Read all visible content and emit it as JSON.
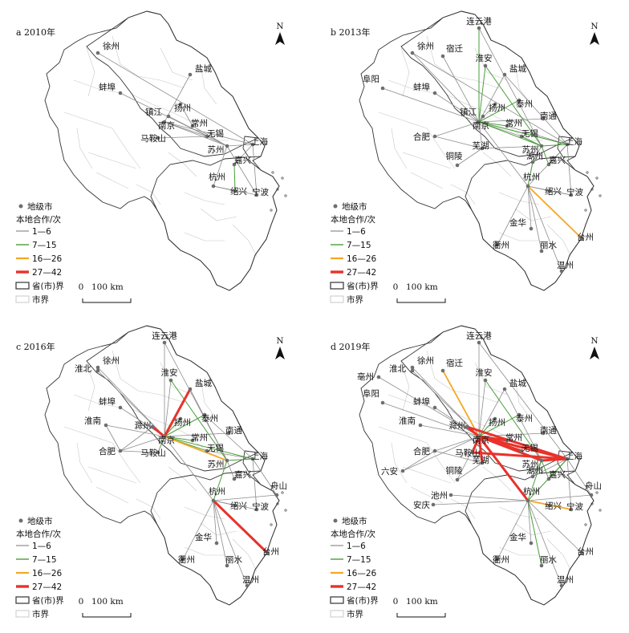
{
  "colors": {
    "c1": "#8c8c8c",
    "c2": "#4a9e3a",
    "c3": "#f5a623",
    "c4": "#e8322b",
    "prov": "#333333",
    "cityb": "#c8c8c8",
    "dot": "#6e6e6e"
  },
  "legend": {
    "dot": "地级市",
    "title": "本地合作/次",
    "classes": [
      "1—6",
      "7—15",
      "16—26",
      "27—42"
    ],
    "prov_boundary": "省(市)界",
    "city_boundary": "市界"
  },
  "north": "N",
  "scale": {
    "zero": "0",
    "label": "100 km"
  },
  "panels": [
    {
      "title": "a 2010年",
      "cities": [
        "徐州",
        "盐城",
        "蚌埠",
        "扬州",
        "镇江",
        "南京",
        "常州",
        "无锡",
        "马鞍山",
        "苏州",
        "上海",
        "嘉兴",
        "杭州",
        "绍兴",
        "宁波"
      ],
      "links": [
        {
          "from": "徐州",
          "to": "上海",
          "w": 1
        },
        {
          "from": "蚌埠",
          "to": "苏州",
          "w": 1
        },
        {
          "from": "盐城",
          "to": "南京",
          "w": 1
        },
        {
          "from": "扬州",
          "to": "常州",
          "w": 1
        },
        {
          "from": "镇江",
          "to": "苏州",
          "w": 1
        },
        {
          "from": "南京",
          "to": "苏州",
          "w": 1
        },
        {
          "from": "南京",
          "to": "上海",
          "w": 1
        },
        {
          "from": "南京",
          "to": "无锡",
          "w": 1
        },
        {
          "from": "常州",
          "to": "苏州",
          "w": 1
        },
        {
          "from": "马鞍山",
          "to": "无锡",
          "w": 1
        },
        {
          "from": "苏州",
          "to": "上海",
          "w": 1
        },
        {
          "from": "苏州",
          "to": "杭州",
          "w": 1
        },
        {
          "from": "苏州",
          "to": "宁波",
          "w": 1
        },
        {
          "from": "上海",
          "to": "宁波",
          "w": 1
        },
        {
          "from": "杭州",
          "to": "绍兴",
          "w": 1
        },
        {
          "from": "杭州",
          "to": "宁波",
          "w": 1
        },
        {
          "from": "上海",
          "to": "嘉兴",
          "w": 1
        },
        {
          "from": "嘉兴",
          "to": "绍兴",
          "w": 2
        }
      ]
    },
    {
      "title": "b 2013年",
      "cities": [
        "连云港",
        "徐州",
        "宿迁",
        "淮安",
        "盐城",
        "阜阳",
        "蚌埠",
        "扬州",
        "泰州",
        "镇江",
        "南京",
        "常州",
        "南通",
        "合肥",
        "无锡",
        "苏州",
        "上海",
        "芜湖",
        "湖州",
        "嘉兴",
        "铜陵",
        "杭州",
        "绍兴",
        "宁波",
        "金华",
        "衢州",
        "台州",
        "丽水",
        "温州"
      ],
      "links": [
        {
          "from": "连云港",
          "to": "南京",
          "w": 2
        },
        {
          "from": "连云港",
          "to": "苏州",
          "w": 1
        },
        {
          "from": "徐州",
          "to": "南京",
          "w": 1
        },
        {
          "from": "徐州",
          "to": "上海",
          "w": 1
        },
        {
          "from": "宿迁",
          "to": "南京",
          "w": 1
        },
        {
          "from": "淮安",
          "to": "南京",
          "w": 2
        },
        {
          "from": "淮安",
          "to": "苏州",
          "w": 2
        },
        {
          "from": "盐城",
          "to": "南京",
          "w": 1
        },
        {
          "from": "盐城",
          "to": "上海",
          "w": 1
        },
        {
          "from": "阜阳",
          "to": "南京",
          "w": 1
        },
        {
          "from": "蚌埠",
          "to": "南京",
          "w": 1
        },
        {
          "from": "扬州",
          "to": "南京",
          "w": 1
        },
        {
          "from": "泰州",
          "to": "南京",
          "w": 2
        },
        {
          "from": "镇江",
          "to": "南京",
          "w": 1
        },
        {
          "from": "南京",
          "to": "常州",
          "w": 2
        },
        {
          "from": "南京",
          "to": "无锡",
          "w": 1
        },
        {
          "from": "南京",
          "to": "苏州",
          "w": 2
        },
        {
          "from": "南京",
          "to": "上海",
          "w": 2
        },
        {
          "from": "南京",
          "to": "南通",
          "w": 1
        },
        {
          "from": "南京",
          "to": "芜湖",
          "w": 1
        },
        {
          "from": "南京",
          "to": "杭州",
          "w": 1
        },
        {
          "from": "南京",
          "to": "合肥",
          "w": 1
        },
        {
          "from": "常州",
          "to": "上海",
          "w": 1
        },
        {
          "from": "无锡",
          "to": "苏州",
          "w": 2
        },
        {
          "from": "苏州",
          "to": "上海",
          "w": 2
        },
        {
          "from": "苏州",
          "to": "嘉兴",
          "w": 2
        },
        {
          "from": "苏州",
          "to": "湖州",
          "w": 1
        },
        {
          "from": "上海",
          "to": "杭州",
          "w": 1
        },
        {
          "from": "上海",
          "to": "宁波",
          "w": 1
        },
        {
          "from": "上海",
          "to": "嘉兴",
          "w": 1
        },
        {
          "from": "合肥",
          "to": "芜湖",
          "w": 1
        },
        {
          "from": "芜湖",
          "to": "铜陵",
          "w": 1
        },
        {
          "from": "芜湖",
          "to": "苏州",
          "w": 1
        },
        {
          "from": "湖州",
          "to": "杭州",
          "w": 1
        },
        {
          "from": "杭州",
          "to": "绍兴",
          "w": 1
        },
        {
          "from": "杭州",
          "to": "宁波",
          "w": 1
        },
        {
          "from": "杭州",
          "to": "金华",
          "w": 1
        },
        {
          "from": "杭州",
          "to": "衢州",
          "w": 1
        },
        {
          "from": "杭州",
          "to": "丽水",
          "w": 1
        },
        {
          "from": "杭州",
          "to": "温州",
          "w": 1
        },
        {
          "from": "杭州",
          "to": "台州",
          "w": 3
        },
        {
          "from": "杭州",
          "to": "湖州",
          "w": 2
        },
        {
          "from": "嘉兴",
          "to": "上海",
          "w": 1
        },
        {
          "from": "宁波",
          "to": "绍兴",
          "w": 1
        }
      ]
    },
    {
      "title": "c 2016年",
      "cities": [
        "连云港",
        "徐州",
        "淮北",
        "淮安",
        "盐城",
        "蚌埠",
        "淮南",
        "扬州",
        "泰州",
        "滁州",
        "南京",
        "常州",
        "南通",
        "合肥",
        "马鞍山",
        "无锡",
        "苏州",
        "上海",
        "嘉兴",
        "杭州",
        "绍兴",
        "舟山",
        "宁波",
        "金华",
        "衢州",
        "台州",
        "丽水",
        "温州"
      ],
      "links": [
        {
          "from": "连云港",
          "to": "南京",
          "w": 1
        },
        {
          "from": "连云港",
          "to": "苏州",
          "w": 1
        },
        {
          "from": "徐州",
          "to": "南京",
          "w": 1
        },
        {
          "from": "淮北",
          "to": "南京",
          "w": 1
        },
        {
          "from": "淮安",
          "to": "南京",
          "w": 1
        },
        {
          "from": "淮安",
          "to": "苏州",
          "w": 2
        },
        {
          "from": "盐城",
          "to": "南京",
          "w": 4
        },
        {
          "from": "盐城",
          "to": "苏州",
          "w": 1
        },
        {
          "from": "蚌埠",
          "to": "南京",
          "w": 1
        },
        {
          "from": "淮南",
          "to": "南京",
          "w": 1
        },
        {
          "from": "扬州",
          "to": "南京",
          "w": 2
        },
        {
          "from": "泰州",
          "to": "南京",
          "w": 2
        },
        {
          "from": "泰州",
          "to": "上海",
          "w": 1
        },
        {
          "from": "滁州",
          "to": "南京",
          "w": 4
        },
        {
          "from": "南京",
          "to": "苏州",
          "w": 3
        },
        {
          "from": "南京",
          "to": "上海",
          "w": 2
        },
        {
          "from": "南京",
          "to": "无锡",
          "w": 2
        },
        {
          "from": "南京",
          "to": "常州",
          "w": 2
        },
        {
          "from": "南京",
          "to": "南通",
          "w": 1
        },
        {
          "from": "南京",
          "to": "杭州",
          "w": 1
        },
        {
          "from": "南京",
          "to": "合肥",
          "w": 1
        },
        {
          "from": "南京",
          "to": "马鞍山",
          "w": 2
        },
        {
          "from": "苏州",
          "to": "上海",
          "w": 2
        },
        {
          "from": "无锡",
          "to": "上海",
          "w": 1
        },
        {
          "from": "苏州",
          "to": "杭州",
          "w": 2
        },
        {
          "from": "苏州",
          "to": "嘉兴",
          "w": 1
        },
        {
          "from": "上海",
          "to": "舟山",
          "w": 1
        },
        {
          "from": "上海",
          "to": "宁波",
          "w": 1
        },
        {
          "from": "杭州",
          "to": "台州",
          "w": 4
        },
        {
          "from": "杭州",
          "to": "绍兴",
          "w": 1
        },
        {
          "from": "杭州",
          "to": "宁波",
          "w": 1
        },
        {
          "from": "杭州",
          "to": "金华",
          "w": 1
        },
        {
          "from": "杭州",
          "to": "衢州",
          "w": 1
        },
        {
          "from": "杭州",
          "to": "丽水",
          "w": 1
        },
        {
          "from": "杭州",
          "to": "温州",
          "w": 1
        },
        {
          "from": "杭州",
          "to": "舟山",
          "w": 1
        },
        {
          "from": "合肥",
          "to": "淮南",
          "w": 1
        },
        {
          "from": "合肥",
          "to": "滁州",
          "w": 1
        },
        {
          "from": "合肥",
          "to": "马鞍山",
          "w": 1
        }
      ]
    },
    {
      "title": "d 2019年",
      "cities": [
        "连云港",
        "徐州",
        "宿迁",
        "淮北",
        "亳州",
        "淮安",
        "盐城",
        "阜阳",
        "蚌埠",
        "淮南",
        "泰州",
        "扬州",
        "滁州",
        "南京",
        "常州",
        "南通",
        "合肥",
        "马鞍山",
        "无锡",
        "苏州",
        "上海",
        "芜湖",
        "六安",
        "铜陵",
        "湖州",
        "嘉兴",
        "池州",
        "安庆",
        "杭州",
        "绍兴",
        "舟山",
        "宁波",
        "金华",
        "衢州",
        "台州",
        "丽水",
        "温州"
      ],
      "links": [
        {
          "from": "连云港",
          "to": "南京",
          "w": 1
        },
        {
          "from": "连云港",
          "to": "上海",
          "w": 1
        },
        {
          "from": "徐州",
          "to": "南京",
          "w": 1
        },
        {
          "from": "宿迁",
          "to": "南京",
          "w": 3
        },
        {
          "from": "淮北",
          "to": "南京",
          "w": 1
        },
        {
          "from": "亳州",
          "to": "南京",
          "w": 1
        },
        {
          "from": "淮安",
          "to": "南京",
          "w": 1
        },
        {
          "from": "淮安",
          "to": "苏州",
          "w": 2
        },
        {
          "from": "盐城",
          "to": "南京",
          "w": 1
        },
        {
          "from": "盐城",
          "to": "苏州",
          "w": 1
        },
        {
          "from": "阜阳",
          "to": "南京",
          "w": 1
        },
        {
          "from": "蚌埠",
          "to": "南京",
          "w": 1
        },
        {
          "from": "淮南",
          "to": "南京",
          "w": 1
        },
        {
          "from": "泰州",
          "to": "南京",
          "w": 2
        },
        {
          "from": "扬州",
          "to": "南京",
          "w": 2
        },
        {
          "from": "滁州",
          "to": "南京",
          "w": 4
        },
        {
          "from": "滁州",
          "to": "上海",
          "w": 4
        },
        {
          "from": "南京",
          "to": "上海",
          "w": 4
        },
        {
          "from": "南京",
          "to": "苏州",
          "w": 4
        },
        {
          "from": "南京",
          "to": "无锡",
          "w": 4
        },
        {
          "from": "南京",
          "to": "常州",
          "w": 4
        },
        {
          "from": "南京",
          "to": "马鞍山",
          "w": 4
        },
        {
          "from": "南京",
          "to": "合肥",
          "w": 1
        },
        {
          "from": "南京",
          "to": "芜湖",
          "w": 4
        },
        {
          "from": "南京",
          "to": "杭州",
          "w": 4
        },
        {
          "from": "南京",
          "to": "南通",
          "w": 1
        },
        {
          "from": "南京",
          "to": "六安",
          "w": 1
        },
        {
          "from": "南京",
          "to": "铜陵",
          "w": 1
        },
        {
          "from": "马鞍山",
          "to": "上海",
          "w": 4
        },
        {
          "from": "苏州",
          "to": "上海",
          "w": 4
        },
        {
          "from": "苏州",
          "to": "杭州",
          "w": 2
        },
        {
          "from": "苏州",
          "to": "嘉兴",
          "w": 2
        },
        {
          "from": "苏州",
          "to": "湖州",
          "w": 1
        },
        {
          "from": "上海",
          "to": "宁波",
          "w": 1
        },
        {
          "from": "上海",
          "to": "舟山",
          "w": 1
        },
        {
          "from": "上海",
          "to": "嘉兴",
          "w": 2
        },
        {
          "from": "上海",
          "to": "湖州",
          "w": 1
        },
        {
          "from": "上海",
          "to": "杭州",
          "w": 2
        },
        {
          "from": "杭州",
          "to": "绍兴",
          "w": 1
        },
        {
          "from": "杭州",
          "to": "宁波",
          "w": 3
        },
        {
          "from": "杭州",
          "to": "金华",
          "w": 1
        },
        {
          "from": "杭州",
          "to": "衢州",
          "w": 1
        },
        {
          "from": "杭州",
          "to": "丽水",
          "w": 2
        },
        {
          "from": "杭州",
          "to": "温州",
          "w": 1
        },
        {
          "from": "杭州",
          "to": "台州",
          "w": 1
        },
        {
          "from": "杭州",
          "to": "舟山",
          "w": 1
        },
        {
          "from": "芜湖",
          "to": "铜陵",
          "w": 1
        },
        {
          "from": "池州",
          "to": "杭州",
          "w": 1
        },
        {
          "from": "安庆",
          "to": "杭州",
          "w": 1
        },
        {
          "from": "六安",
          "to": "合肥",
          "w": 1
        },
        {
          "from": "合肥",
          "to": "芜湖",
          "w": 1
        }
      ]
    }
  ]
}
